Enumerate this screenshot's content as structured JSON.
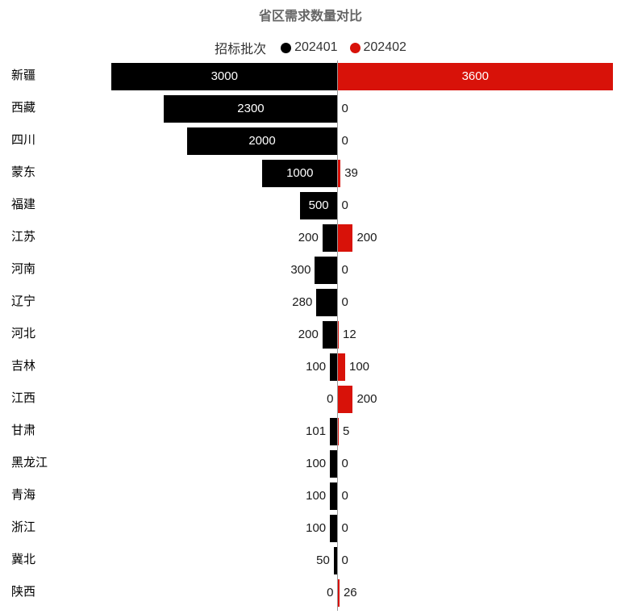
{
  "title": "省区需求数量对比",
  "legend": {
    "title": "招标批次",
    "items": [
      {
        "label": "202401",
        "color": "#000000"
      },
      {
        "label": "202402",
        "color": "#d81209"
      }
    ]
  },
  "colors": {
    "series_202401": "#000000",
    "series_202402": "#d81209",
    "axis_line": "#999999",
    "title_text": "#666666",
    "outside_label_text": "#1a1a1a",
    "inside_label_text": "#ffffff",
    "background": "#ffffff"
  },
  "chart_data": {
    "type": "bar",
    "subtype": "diverging-horizontal",
    "title": "省区需求数量对比",
    "legend_title": "招标批次",
    "legend_position": "top-center",
    "grid": false,
    "value_labels": true,
    "categories": [
      "新疆",
      "西藏",
      "四川",
      "蒙东",
      "福建",
      "江苏",
      "河南",
      "辽宁",
      "河北",
      "吉林",
      "江西",
      "甘肃",
      "黑龙江",
      "青海",
      "浙江",
      "冀北",
      "陕西"
    ],
    "series": [
      {
        "name": "202401",
        "color": "#000000",
        "direction": "left",
        "axis_max": 3000,
        "values": [
          3000,
          2300,
          2000,
          1000,
          500,
          200,
          300,
          280,
          200,
          100,
          0,
          101,
          100,
          100,
          100,
          50,
          0
        ]
      },
      {
        "name": "202402",
        "color": "#d81209",
        "direction": "right",
        "axis_max": 3600,
        "values": [
          3600,
          0,
          0,
          39,
          0,
          200,
          0,
          0,
          12,
          100,
          200,
          5,
          0,
          0,
          0,
          0,
          26
        ]
      }
    ]
  }
}
